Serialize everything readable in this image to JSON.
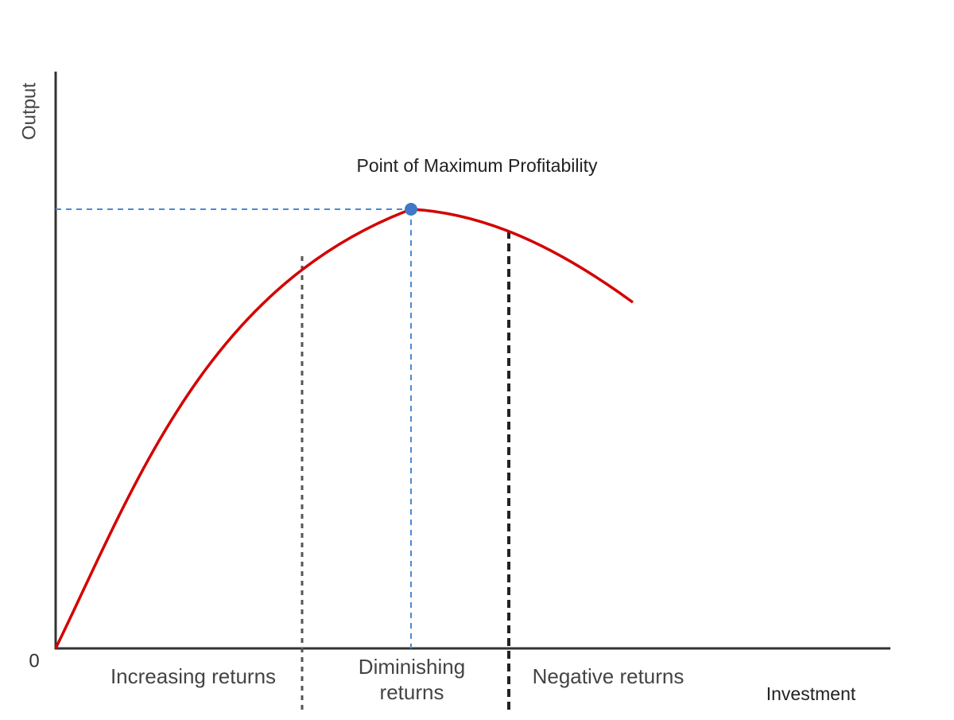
{
  "axes": {
    "y_label": "Output",
    "x_label": "Investment",
    "origin": "0"
  },
  "annotation": "Point of Maximum Profitability",
  "regions": [
    {
      "lines": [
        "Increasing returns"
      ]
    },
    {
      "lines": [
        "Diminishing",
        "returns"
      ]
    },
    {
      "lines": [
        "Negative returns"
      ]
    }
  ]
}
